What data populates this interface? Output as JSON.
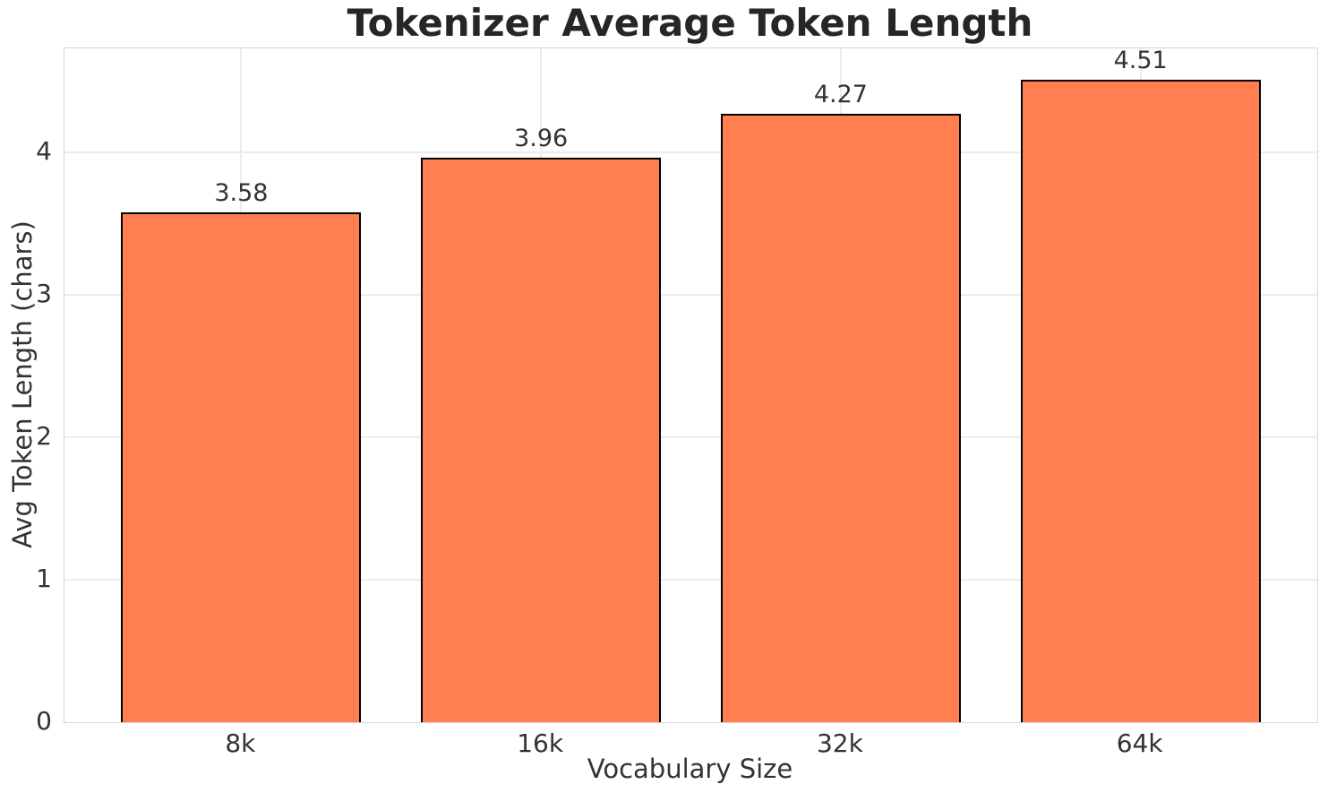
{
  "chart_data": {
    "type": "bar",
    "title": "Tokenizer Average Token Length",
    "xlabel": "Vocabulary Size",
    "ylabel": "Avg Token Length (chars)",
    "categories": [
      "8k",
      "16k",
      "32k",
      "64k"
    ],
    "values": [
      3.58,
      3.96,
      4.27,
      4.51
    ],
    "value_labels": [
      "3.58",
      "3.96",
      "4.27",
      "4.51"
    ],
    "ylim": [
      0,
      4.73
    ],
    "yticks": [
      0,
      1,
      2,
      3,
      4
    ],
    "ytick_labels": [
      "0",
      "1",
      "2",
      "3",
      "4"
    ],
    "grid": true,
    "legend_position": "none",
    "colors": {
      "bar_fill": "#FF7F50",
      "bar_edge": "#000000",
      "grid_line": "#ececec",
      "spine": "#d5d5d5",
      "tick_text": "#333333",
      "title_text": "#262626",
      "background": "#ffffff"
    }
  }
}
